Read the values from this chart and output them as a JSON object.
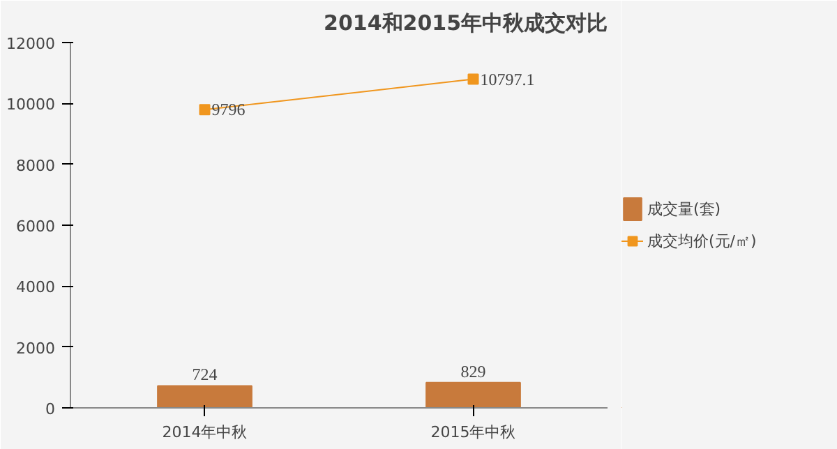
{
  "chart_data": {
    "type": "bar",
    "title": "2014和2015年中秋成交对比",
    "categories": [
      "2014年中秋",
      "2015年中秋"
    ],
    "series": [
      {
        "name": "成交量(套)",
        "color": "#c87a3c",
        "values": [
          724,
          829
        ]
      },
      {
        "name": "成交均价(元/㎡)",
        "type": "line",
        "color": "#f0961e",
        "values": [
          9796,
          10797.1
        ]
      }
    ],
    "ylim": [
      0,
      12000
    ],
    "yticks": [
      0,
      2000,
      4000,
      6000,
      8000,
      10000,
      12000
    ],
    "grid": false,
    "legend": "right",
    "data_labels": true,
    "marker": "square",
    "line_style": "solid"
  }
}
